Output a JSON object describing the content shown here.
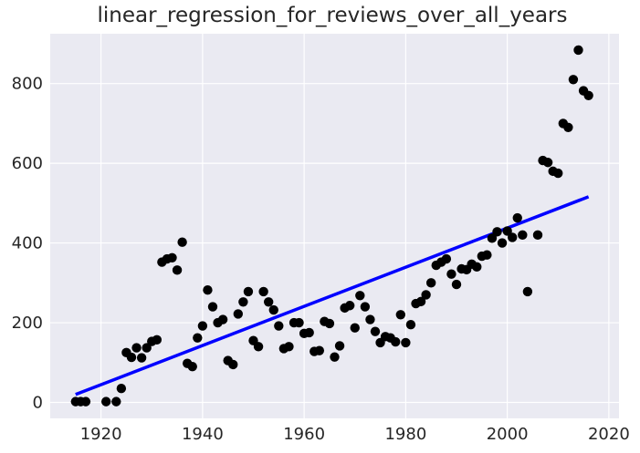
{
  "chart_data": {
    "type": "scatter",
    "title": "linear_regression_for_reviews_over_all_years",
    "xlabel": "",
    "ylabel": "",
    "xlim": [
      1910,
      2022
    ],
    "ylim": [
      -40,
      925
    ],
    "xticks": [
      1920,
      1940,
      1960,
      1980,
      2000,
      2020
    ],
    "yticks": [
      0,
      200,
      400,
      600,
      800
    ],
    "grid": true,
    "colors": {
      "background": "#EAEAF2",
      "grid": "#FFFFFF",
      "points": "#000000",
      "regression": "#0000FF"
    },
    "series": [
      {
        "kind": "scatter",
        "x": [
          1915,
          1916,
          1917,
          1921,
          1923,
          1924,
          1925,
          1926,
          1927,
          1928,
          1929,
          1930,
          1931,
          1932,
          1933,
          1934,
          1935,
          1936,
          1937,
          1938,
          1939,
          1940,
          1941,
          1942,
          1943,
          1944,
          1945,
          1946,
          1947,
          1948,
          1949,
          1950,
          1951,
          1952,
          1953,
          1954,
          1955,
          1956,
          1957,
          1958,
          1959,
          1960,
          1961,
          1962,
          1963,
          1964,
          1965,
          1966,
          1967,
          1968,
          1969,
          1970,
          1971,
          1972,
          1973,
          1974,
          1975,
          1976,
          1977,
          1978,
          1979,
          1980,
          1981,
          1982,
          1983,
          1984,
          1985,
          1986,
          1987,
          1988,
          1989,
          1990,
          1991,
          1992,
          1993,
          1994,
          1995,
          1996,
          1997,
          1998,
          1999,
          2000,
          2001,
          2002,
          2003,
          2004,
          2006,
          2007,
          2008,
          2009,
          2010,
          2011,
          2012,
          2013,
          2014,
          2015,
          2016
        ],
        "y": [
          2,
          2,
          2,
          2,
          2,
          35,
          125,
          113,
          137,
          112,
          137,
          153,
          157,
          352,
          360,
          363,
          332,
          402,
          98,
          90,
          162,
          192,
          282,
          240,
          200,
          208,
          105,
          95,
          222,
          252,
          278,
          155,
          140,
          278,
          252,
          232,
          192,
          135,
          140,
          200,
          200,
          173,
          175,
          128,
          130,
          203,
          198,
          114,
          142,
          237,
          243,
          187,
          268,
          240,
          208,
          178,
          150,
          165,
          162,
          152,
          220,
          150,
          195,
          248,
          253,
          270,
          300,
          344,
          352,
          360,
          322,
          296,
          335,
          333,
          347,
          340,
          367,
          370,
          412,
          428,
          400,
          430,
          414,
          463,
          420,
          278,
          420,
          607,
          602,
          580,
          575,
          700,
          690,
          810,
          884,
          782,
          770
        ]
      },
      {
        "kind": "line",
        "name": "",
        "x": [
          1915,
          2016
        ],
        "y": [
          20,
          516
        ]
      }
    ]
  }
}
